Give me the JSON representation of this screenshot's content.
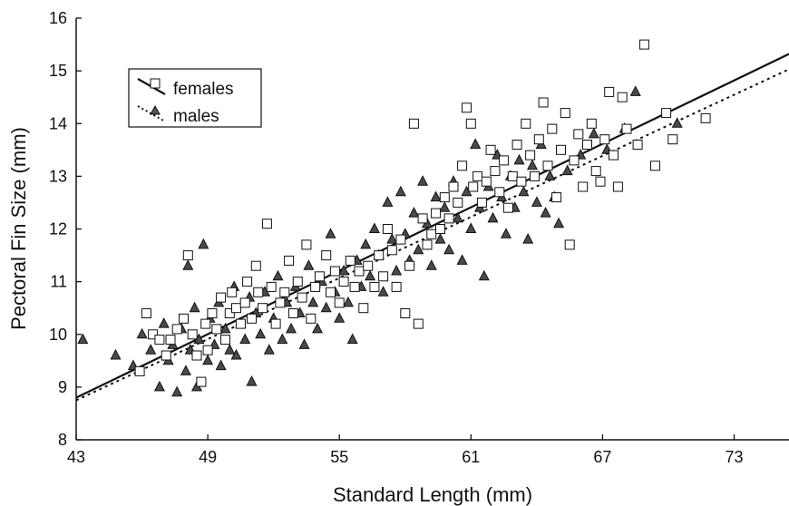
{
  "chart_data": {
    "type": "scatter",
    "title": "",
    "xlabel": "Standard Length (mm)",
    "ylabel": "Pectoral Fin Size (mm)",
    "xlim": [
      43,
      75.5
    ],
    "ylim": [
      8,
      16
    ],
    "xticks": [
      "43",
      "49",
      "55",
      "61",
      "67",
      "73"
    ],
    "yticks": [
      "8",
      "9",
      "10",
      "11",
      "12",
      "13",
      "14",
      "15",
      "16"
    ],
    "grid": false,
    "legend_position": "top-left",
    "series": [
      {
        "name": "females",
        "marker": "square",
        "line_style": "solid",
        "regression": {
          "x": [
            43,
            75.5
          ],
          "y": [
            8.8,
            15.32
          ]
        },
        "points": [
          [
            45.9,
            9.3
          ],
          [
            46.2,
            10.4
          ],
          [
            46.5,
            10.0
          ],
          [
            46.8,
            9.9
          ],
          [
            47.1,
            9.6
          ],
          [
            47.3,
            9.9
          ],
          [
            47.6,
            10.1
          ],
          [
            47.9,
            10.3
          ],
          [
            48.1,
            11.5
          ],
          [
            48.3,
            10.0
          ],
          [
            48.5,
            9.6
          ],
          [
            48.7,
            9.1
          ],
          [
            48.9,
            10.2
          ],
          [
            49.0,
            9.7
          ],
          [
            49.2,
            10.4
          ],
          [
            49.4,
            10.1
          ],
          [
            49.6,
            10.7
          ],
          [
            49.8,
            9.9
          ],
          [
            50.0,
            10.4
          ],
          [
            50.1,
            10.8
          ],
          [
            50.3,
            10.5
          ],
          [
            50.5,
            10.2
          ],
          [
            50.7,
            10.6
          ],
          [
            50.8,
            11.0
          ],
          [
            51.0,
            10.3
          ],
          [
            51.2,
            11.3
          ],
          [
            51.3,
            10.8
          ],
          [
            51.5,
            10.5
          ],
          [
            51.7,
            12.1
          ],
          [
            51.9,
            10.9
          ],
          [
            52.1,
            10.2
          ],
          [
            52.3,
            10.6
          ],
          [
            52.5,
            10.8
          ],
          [
            52.7,
            11.4
          ],
          [
            52.9,
            10.4
          ],
          [
            53.1,
            11.0
          ],
          [
            53.3,
            10.7
          ],
          [
            53.5,
            11.7
          ],
          [
            53.7,
            10.3
          ],
          [
            53.9,
            10.9
          ],
          [
            54.1,
            11.1
          ],
          [
            54.4,
            11.5
          ],
          [
            54.6,
            10.8
          ],
          [
            54.8,
            11.2
          ],
          [
            55.0,
            10.6
          ],
          [
            55.2,
            11.0
          ],
          [
            55.5,
            11.4
          ],
          [
            55.7,
            10.9
          ],
          [
            55.9,
            11.2
          ],
          [
            56.1,
            10.5
          ],
          [
            56.3,
            11.3
          ],
          [
            56.6,
            10.9
          ],
          [
            56.8,
            11.5
          ],
          [
            57.0,
            11.1
          ],
          [
            57.2,
            12.0
          ],
          [
            57.4,
            11.6
          ],
          [
            57.6,
            10.9
          ],
          [
            57.8,
            11.8
          ],
          [
            58.0,
            10.4
          ],
          [
            58.2,
            11.3
          ],
          [
            58.4,
            14.0
          ],
          [
            58.6,
            10.2
          ],
          [
            58.8,
            12.2
          ],
          [
            59.0,
            11.7
          ],
          [
            59.2,
            11.9
          ],
          [
            59.4,
            12.3
          ],
          [
            59.6,
            12.0
          ],
          [
            59.8,
            12.6
          ],
          [
            60.0,
            12.2
          ],
          [
            60.2,
            12.8
          ],
          [
            60.4,
            12.5
          ],
          [
            60.6,
            13.2
          ],
          [
            60.8,
            14.3
          ],
          [
            61.0,
            14.0
          ],
          [
            61.1,
            12.8
          ],
          [
            61.3,
            13.0
          ],
          [
            61.5,
            12.5
          ],
          [
            61.7,
            12.9
          ],
          [
            61.9,
            13.5
          ],
          [
            62.1,
            13.1
          ],
          [
            62.3,
            12.7
          ],
          [
            62.5,
            13.3
          ],
          [
            62.7,
            12.4
          ],
          [
            62.9,
            13.0
          ],
          [
            63.1,
            13.6
          ],
          [
            63.3,
            12.9
          ],
          [
            63.5,
            14.0
          ],
          [
            63.7,
            13.4
          ],
          [
            63.9,
            13.0
          ],
          [
            64.1,
            13.7
          ],
          [
            64.3,
            14.4
          ],
          [
            64.5,
            13.2
          ],
          [
            64.7,
            13.9
          ],
          [
            64.9,
            12.6
          ],
          [
            65.1,
            13.5
          ],
          [
            65.3,
            14.2
          ],
          [
            65.5,
            11.7
          ],
          [
            65.7,
            13.3
          ],
          [
            65.9,
            13.8
          ],
          [
            66.1,
            12.8
          ],
          [
            66.3,
            13.6
          ],
          [
            66.5,
            14.0
          ],
          [
            66.7,
            13.1
          ],
          [
            66.9,
            12.9
          ],
          [
            67.1,
            13.7
          ],
          [
            67.3,
            14.6
          ],
          [
            67.5,
            13.4
          ],
          [
            67.7,
            12.8
          ],
          [
            67.9,
            14.5
          ],
          [
            68.1,
            13.9
          ],
          [
            68.6,
            13.6
          ],
          [
            68.9,
            15.5
          ],
          [
            69.4,
            13.2
          ],
          [
            69.9,
            14.2
          ],
          [
            70.2,
            13.7
          ],
          [
            71.7,
            14.1
          ]
        ]
      },
      {
        "name": "males",
        "marker": "triangle",
        "line_style": "dotted",
        "regression": {
          "x": [
            43,
            75.5
          ],
          "y": [
            8.75,
            15.03
          ]
        },
        "points": [
          [
            43.3,
            9.9
          ],
          [
            44.8,
            9.6
          ],
          [
            45.6,
            9.4
          ],
          [
            46.0,
            10.0
          ],
          [
            46.4,
            9.7
          ],
          [
            46.8,
            9.0
          ],
          [
            47.0,
            10.2
          ],
          [
            47.2,
            9.5
          ],
          [
            47.4,
            9.8
          ],
          [
            47.6,
            8.9
          ],
          [
            47.8,
            10.1
          ],
          [
            48.0,
            9.3
          ],
          [
            48.1,
            11.3
          ],
          [
            48.2,
            9.7
          ],
          [
            48.4,
            10.5
          ],
          [
            48.5,
            9.0
          ],
          [
            48.6,
            9.9
          ],
          [
            48.8,
            11.7
          ],
          [
            49.0,
            9.5
          ],
          [
            49.1,
            10.3
          ],
          [
            49.3,
            9.8
          ],
          [
            49.5,
            10.6
          ],
          [
            49.6,
            9.4
          ],
          [
            49.8,
            10.1
          ],
          [
            50.0,
            9.7
          ],
          [
            50.2,
            10.9
          ],
          [
            50.3,
            9.6
          ],
          [
            50.5,
            10.2
          ],
          [
            50.7,
            9.9
          ],
          [
            50.9,
            10.7
          ],
          [
            51.0,
            9.1
          ],
          [
            51.2,
            10.4
          ],
          [
            51.4,
            10.0
          ],
          [
            51.6,
            10.8
          ],
          [
            51.8,
            9.7
          ],
          [
            52.0,
            10.3
          ],
          [
            52.2,
            11.1
          ],
          [
            52.4,
            9.9
          ],
          [
            52.6,
            10.6
          ],
          [
            52.8,
            10.1
          ],
          [
            53.0,
            10.9
          ],
          [
            53.2,
            10.4
          ],
          [
            53.4,
            9.8
          ],
          [
            53.6,
            11.3
          ],
          [
            53.8,
            10.6
          ],
          [
            54.0,
            10.1
          ],
          [
            54.2,
            11.0
          ],
          [
            54.4,
            10.5
          ],
          [
            54.6,
            11.9
          ],
          [
            54.8,
            10.8
          ],
          [
            55.0,
            10.3
          ],
          [
            55.2,
            11.2
          ],
          [
            55.4,
            10.6
          ],
          [
            55.6,
            9.9
          ],
          [
            55.8,
            11.4
          ],
          [
            56.0,
            10.9
          ],
          [
            56.2,
            11.7
          ],
          [
            56.4,
            11.1
          ],
          [
            56.6,
            12.0
          ],
          [
            56.8,
            11.5
          ],
          [
            57.0,
            10.8
          ],
          [
            57.2,
            12.5
          ],
          [
            57.4,
            11.8
          ],
          [
            57.6,
            11.2
          ],
          [
            57.8,
            12.7
          ],
          [
            58.0,
            11.9
          ],
          [
            58.2,
            11.4
          ],
          [
            58.4,
            12.3
          ],
          [
            58.6,
            11.6
          ],
          [
            58.8,
            12.9
          ],
          [
            59.0,
            12.1
          ],
          [
            59.2,
            11.3
          ],
          [
            59.4,
            12.6
          ],
          [
            59.6,
            11.8
          ],
          [
            59.8,
            12.4
          ],
          [
            60.0,
            11.6
          ],
          [
            60.2,
            12.9
          ],
          [
            60.4,
            12.2
          ],
          [
            60.6,
            11.4
          ],
          [
            60.8,
            12.7
          ],
          [
            61.0,
            12.0
          ],
          [
            61.2,
            13.6
          ],
          [
            61.4,
            12.4
          ],
          [
            61.6,
            11.1
          ],
          [
            61.8,
            12.8
          ],
          [
            62.0,
            12.2
          ],
          [
            62.2,
            13.4
          ],
          [
            62.4,
            12.6
          ],
          [
            62.6,
            11.9
          ],
          [
            62.8,
            13.0
          ],
          [
            63.0,
            12.4
          ],
          [
            63.2,
            13.3
          ],
          [
            63.4,
            12.7
          ],
          [
            63.6,
            11.8
          ],
          [
            63.8,
            13.2
          ],
          [
            64.0,
            12.5
          ],
          [
            64.2,
            13.6
          ],
          [
            64.4,
            12.3
          ],
          [
            64.6,
            13.0
          ],
          [
            64.8,
            12.6
          ],
          [
            65.0,
            12.1
          ],
          [
            65.4,
            13.1
          ],
          [
            66.0,
            13.4
          ],
          [
            66.6,
            13.8
          ],
          [
            67.2,
            13.5
          ],
          [
            68.0,
            13.9
          ],
          [
            68.5,
            14.6
          ],
          [
            70.4,
            14.0
          ]
        ]
      }
    ]
  }
}
